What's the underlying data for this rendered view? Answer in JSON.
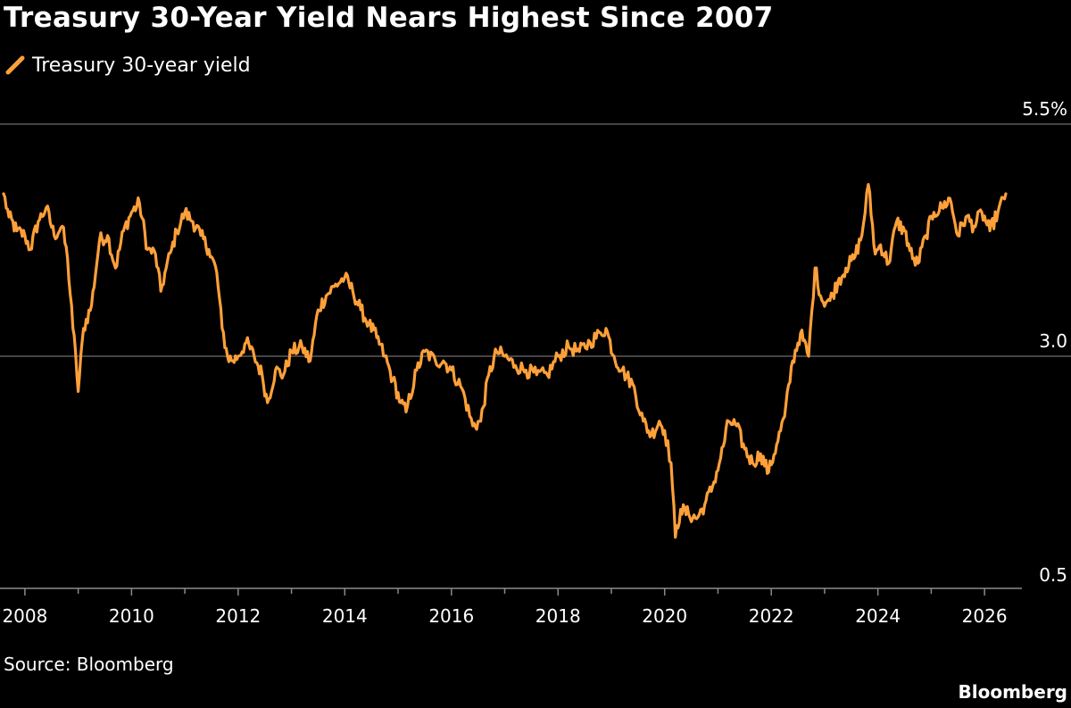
{
  "title": "Treasury 30-Year Yield Nears Highest Since 2007",
  "source": "Source: Bloomberg",
  "brand": "Bloomberg",
  "colors": {
    "background": "#000000",
    "series": "#FFA03A",
    "grid": "#5a5a5a",
    "axis": "#8a8a8a",
    "text": "#ffffff"
  },
  "chart_data": {
    "type": "line",
    "title": "Treasury 30-Year Yield Nears Highest Since 2007",
    "xlabel": "",
    "ylabel": "",
    "xlim": [
      2007.6,
      2026.45
    ],
    "ylim": [
      0.5,
      5.5
    ],
    "y_ticks": [
      {
        "value": 5.5,
        "label": "5.5%"
      },
      {
        "value": 3.0,
        "label": "3.0"
      },
      {
        "value": 0.5,
        "label": "0.5"
      }
    ],
    "x_ticks": [
      "2008",
      "2010",
      "2012",
      "2014",
      "2016",
      "2018",
      "2020",
      "2022",
      "2024",
      "2026"
    ],
    "grid": "horizontal",
    "legend": "top-left",
    "series": [
      {
        "name": "Treasury 30-year yield",
        "color": "#FFA03A",
        "x": [
          2007.6,
          2007.7,
          2007.85,
          2008.0,
          2008.1,
          2008.25,
          2008.4,
          2008.55,
          2008.7,
          2008.8,
          2008.9,
          2008.95,
          2009.0,
          2009.1,
          2009.25,
          2009.4,
          2009.55,
          2009.7,
          2009.85,
          2010.0,
          2010.15,
          2010.3,
          2010.45,
          2010.55,
          2010.65,
          2010.75,
          2010.85,
          2011.0,
          2011.15,
          2011.3,
          2011.45,
          2011.6,
          2011.7,
          2011.8,
          2011.9,
          2012.0,
          2012.15,
          2012.3,
          2012.45,
          2012.55,
          2012.7,
          2012.85,
          2013.0,
          2013.2,
          2013.35,
          2013.5,
          2013.65,
          2013.8,
          2014.0,
          2014.15,
          2014.3,
          2014.45,
          2014.6,
          2014.75,
          2014.9,
          2015.05,
          2015.15,
          2015.35,
          2015.5,
          2015.7,
          2015.85,
          2016.0,
          2016.2,
          2016.4,
          2016.55,
          2016.7,
          2016.85,
          2017.0,
          2017.2,
          2017.4,
          2017.6,
          2017.8,
          2018.0,
          2018.2,
          2018.4,
          2018.6,
          2018.8,
          2018.9,
          2019.05,
          2019.2,
          2019.4,
          2019.6,
          2019.75,
          2019.9,
          2020.0,
          2020.12,
          2020.2,
          2020.3,
          2020.45,
          2020.6,
          2020.75,
          2020.9,
          2021.05,
          2021.2,
          2021.35,
          2021.5,
          2021.65,
          2021.8,
          2021.95,
          2022.1,
          2022.25,
          2022.4,
          2022.55,
          2022.7,
          2022.82,
          2022.95,
          2023.1,
          2023.25,
          2023.4,
          2023.55,
          2023.7,
          2023.82,
          2023.95,
          2024.05,
          2024.2,
          2024.35,
          2024.5,
          2024.65,
          2024.75,
          2024.9,
          2025.05,
          2025.2,
          2025.35,
          2025.5,
          2025.65,
          2025.8,
          2025.95,
          2026.1,
          2026.25,
          2026.4
        ],
        "y": [
          4.75,
          4.5,
          4.35,
          4.3,
          4.15,
          4.45,
          4.6,
          4.3,
          4.4,
          4.05,
          3.3,
          3.05,
          2.62,
          3.3,
          3.55,
          4.25,
          4.3,
          3.95,
          4.35,
          4.55,
          4.65,
          4.15,
          4.1,
          3.7,
          3.95,
          4.15,
          4.35,
          4.55,
          4.45,
          4.3,
          4.15,
          3.9,
          3.3,
          3.0,
          2.95,
          3.0,
          3.15,
          3.0,
          2.8,
          2.5,
          2.85,
          2.8,
          3.05,
          3.1,
          2.95,
          3.5,
          3.65,
          3.75,
          3.85,
          3.7,
          3.5,
          3.35,
          3.2,
          3.0,
          2.75,
          2.5,
          2.4,
          2.85,
          3.05,
          2.95,
          2.95,
          2.85,
          2.65,
          2.25,
          2.3,
          2.8,
          3.05,
          3.0,
          2.9,
          2.85,
          2.8,
          2.8,
          3.0,
          3.1,
          3.05,
          3.15,
          3.25,
          3.3,
          3.0,
          2.85,
          2.7,
          2.3,
          2.15,
          2.3,
          2.2,
          1.85,
          1.05,
          1.35,
          1.3,
          1.25,
          1.4,
          1.6,
          1.9,
          2.3,
          2.25,
          2.0,
          1.85,
          1.95,
          1.75,
          2.05,
          2.35,
          2.95,
          3.25,
          3.0,
          3.95,
          3.6,
          3.6,
          3.8,
          3.95,
          4.05,
          4.3,
          4.85,
          4.1,
          4.2,
          4.0,
          4.45,
          4.35,
          4.05,
          4.0,
          4.3,
          4.55,
          4.6,
          4.7,
          4.3,
          4.5,
          4.4,
          4.55,
          4.35,
          4.55,
          4.75
        ]
      }
    ]
  }
}
